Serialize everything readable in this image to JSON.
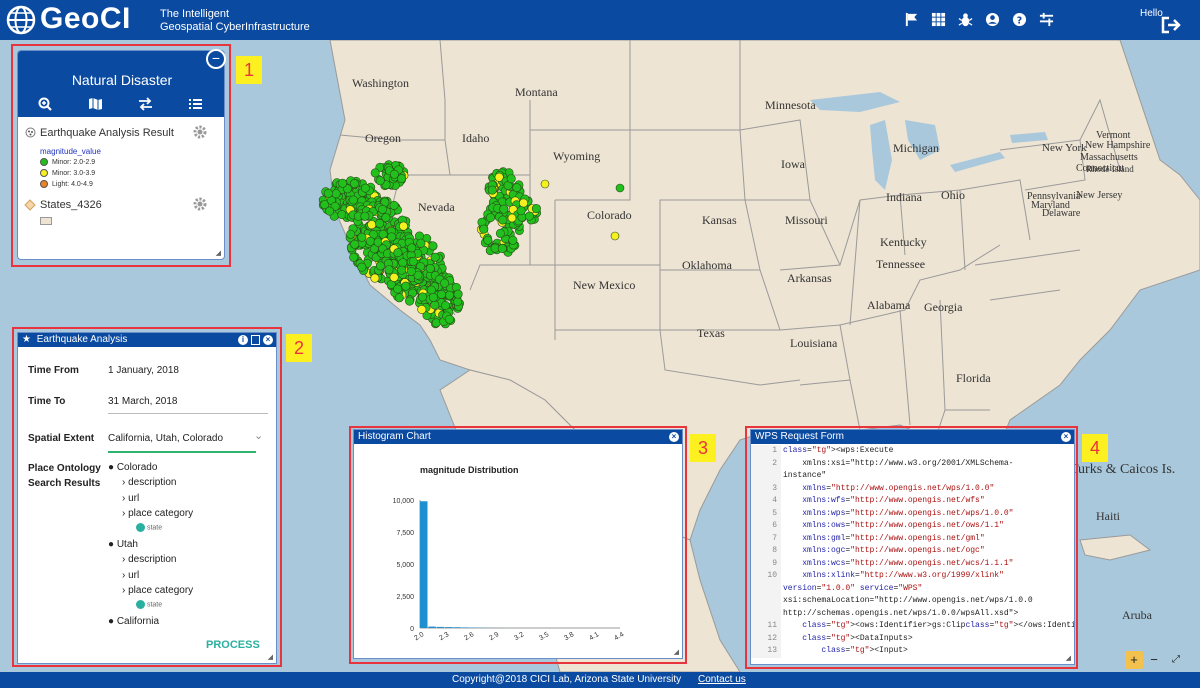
{
  "header": {
    "logo": "GeoCI",
    "tagline_line1": "The Intelligent",
    "tagline_line2": "Geospatial CyberInfrastructure",
    "hello": "Hello",
    "icons": [
      "flag-icon",
      "grid-icon",
      "bug-icon",
      "user-icon",
      "help-icon",
      "settings-sliders-icon",
      "logout-icon"
    ]
  },
  "map": {
    "labels": [
      {
        "t": "Washington"
      },
      {
        "t": "Montana"
      },
      {
        "t": "Minnesota"
      },
      {
        "t": "Oregon"
      },
      {
        "t": "Idaho"
      },
      {
        "t": "Wyoming"
      },
      {
        "t": "Michigan"
      },
      {
        "t": "New York"
      },
      {
        "t": "Vermont"
      },
      {
        "t": "New Hampshire"
      },
      {
        "t": "Massachusetts"
      },
      {
        "t": "Connecticut"
      },
      {
        "t": "Rhode Island"
      },
      {
        "t": "Iowa"
      },
      {
        "t": "Nevada"
      },
      {
        "t": "Colorado"
      },
      {
        "t": "Indiana"
      },
      {
        "t": "Ohio"
      },
      {
        "t": "Pennsylvania"
      },
      {
        "t": "New Jersey"
      },
      {
        "t": "Maryland"
      },
      {
        "t": "Delaware"
      },
      {
        "t": "Kansas"
      },
      {
        "t": "Missouri"
      },
      {
        "t": "Kentucky"
      },
      {
        "t": "Tennessee"
      },
      {
        "t": "Oklahoma"
      },
      {
        "t": "Arkansas"
      },
      {
        "t": "New Mexico"
      },
      {
        "t": "Alabama"
      },
      {
        "t": "Georgia"
      },
      {
        "t": "Texas"
      },
      {
        "t": "Louisiana"
      },
      {
        "t": "Florida"
      },
      {
        "t": "Turks & Caicos Is."
      },
      {
        "t": "Haiti"
      },
      {
        "t": "Aruba"
      }
    ]
  },
  "panel1": {
    "number": "1",
    "title": "Natural Disaster",
    "collapse": "−",
    "layer1": "Earthquake Analysis Result",
    "field": "magnitude_value",
    "legend": [
      {
        "label": "Minor: 2.0-2.9",
        "color": "#22c01c"
      },
      {
        "label": "Minor: 3.0-3.9",
        "color": "#f5f020"
      },
      {
        "label": "Light: 4.0-4.9",
        "color": "#e8852a"
      }
    ],
    "layer2": "States_4326",
    "tools": [
      "zoom-in-icon",
      "map-icon",
      "swap-icon",
      "list-icon"
    ]
  },
  "panel2": {
    "number": "2",
    "title": "Earthquake Analysis",
    "time_from_label": "Time From",
    "time_from": "1 January, 2018",
    "time_to_label": "Time To",
    "time_to": "31 March, 2018",
    "extent_label": "Spatial Extent",
    "extent": "California, Utah, Colorado",
    "ontology_label1": "Place Ontology",
    "ontology_label2": "Search Results",
    "tree": {
      "colorado": "Colorado",
      "utah": "Utah",
      "california": "California",
      "description": "description",
      "url": "url",
      "place_category": "place category",
      "state": "state"
    },
    "process": "PROCESS"
  },
  "panel3": {
    "number": "3",
    "title": "Histogram Chart",
    "close": "×"
  },
  "chart_data": {
    "type": "bar",
    "title": "magnitude Distribution",
    "xlabel": "",
    "ylabel": "",
    "x": [
      2.0,
      2.1,
      2.2,
      2.3,
      2.4,
      2.5,
      2.6,
      2.7,
      2.8,
      2.9
    ],
    "values": [
      9900,
      110,
      85,
      70,
      60,
      45,
      30,
      20,
      12,
      8
    ],
    "ylim": [
      0,
      10000
    ],
    "yticks": [
      "0",
      "2,500",
      "5,000",
      "7,500",
      "10,000"
    ],
    "xticks": [
      "2.0",
      "2.3",
      "2.6",
      "2.9",
      "3.2",
      "3.5",
      "3.8",
      "4.1",
      "4.4"
    ],
    "xlim": [
      2.0,
      4.4
    ],
    "color": "#1f8fcf"
  },
  "panel4": {
    "number": "4",
    "title": "WPS Request Form",
    "close": "×",
    "lines": [
      {
        "n": "1",
        "c": "<wps:Execute"
      },
      {
        "n": "2",
        "c": "    xmlns:xsi=\"http://www.w3.org/2001/XMLSchema-"
      },
      {
        "n": "",
        "c": "instance\""
      },
      {
        "n": "3",
        "c": "    xmlns=\"http://www.opengis.net/wps/1.0.0\""
      },
      {
        "n": "4",
        "c": "    xmlns:wfs=\"http://www.opengis.net/wfs\""
      },
      {
        "n": "5",
        "c": "    xmlns:wps=\"http://www.opengis.net/wps/1.0.0\""
      },
      {
        "n": "6",
        "c": "    xmlns:ows=\"http://www.opengis.net/ows/1.1\""
      },
      {
        "n": "7",
        "c": "    xmlns:gml=\"http://www.opengis.net/gml\""
      },
      {
        "n": "8",
        "c": "    xmlns:ogc=\"http://www.opengis.net/ogc\""
      },
      {
        "n": "9",
        "c": "    xmlns:wcs=\"http://www.opengis.net/wcs/1.1.1\""
      },
      {
        "n": "10",
        "c": "    xmlns:xlink=\"http://www.w3.org/1999/xlink\""
      },
      {
        "n": "",
        "c": "version=\"1.0.0\" service=\"WPS\""
      },
      {
        "n": "",
        "c": "xsi:schemaLocation=\"http://www.opengis.net/wps/1.0.0"
      },
      {
        "n": "",
        "c": "http://schemas.opengis.net/wps/1.0.0/wpsAll.xsd\">"
      },
      {
        "n": "11",
        "c": "    <ows:Identifier>gs:Clip</ows:Identifier>"
      },
      {
        "n": "12",
        "c": "    <DataInputs>"
      },
      {
        "n": "13",
        "c": "        <Input>"
      }
    ]
  },
  "footer": {
    "copyright": "Copyright@2018 CICI Lab, Arizona State University",
    "contact": "Contact us"
  },
  "map_controls": {
    "zoom_in": "+",
    "zoom_out": "−"
  }
}
